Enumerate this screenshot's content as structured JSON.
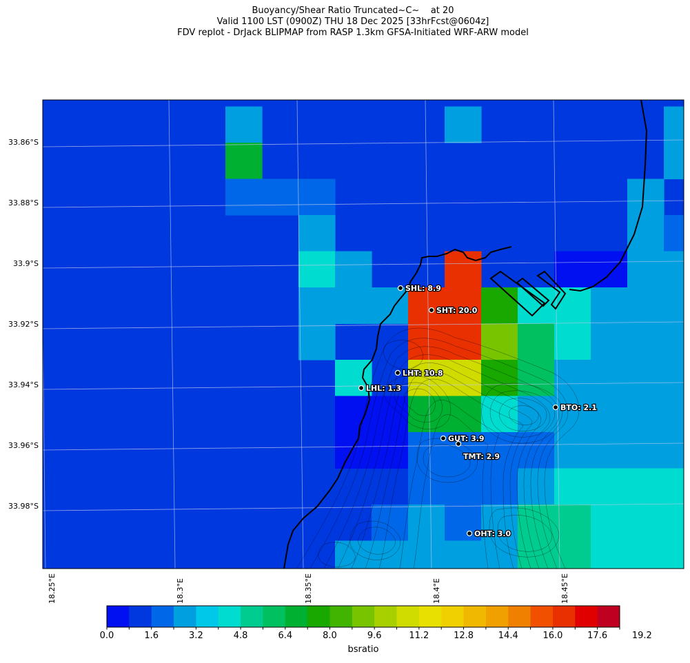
{
  "title": {
    "line1": "Buoyancy/Shear Ratio Truncated~C~    at 20",
    "line2": "Valid 1100 LST (0900Z) THU 18 Dec 2025 [33hrFcst@0604z]",
    "line3": "FDV replot - DrJack BLIPMAP from RASP 1.3km GFSA-Initiated WRF-ARW model"
  },
  "map": {
    "lat_ticks": [
      "33.86°S",
      "33.88°S",
      "33.9°S",
      "33.92°S",
      "33.94°S",
      "33.96°S",
      "33.98°S"
    ],
    "lon_ticks": [
      "18.25°E",
      "18.3°E",
      "18.35°E",
      "18.4°E",
      "18.45°E"
    ],
    "stations": [
      {
        "label": "SHL: 8.9",
        "value": 8.9
      },
      {
        "label": "SHT: 20.0",
        "value": 20.0
      },
      {
        "label": "LHT: 10.8",
        "value": 10.8
      },
      {
        "label": "LHL: 1.3",
        "value": 1.3
      },
      {
        "label": "BTO: 2.1",
        "value": 2.1
      },
      {
        "label": "GUT: 3.9",
        "value": 3.9
      },
      {
        "label": "TMT: 2.9",
        "value": 2.9
      },
      {
        "label": "OHT: 3.0",
        "value": 3.0
      }
    ],
    "background_level": 1,
    "cell_levels": [
      [
        1,
        1,
        1,
        1,
        1,
        1,
        1,
        1,
        1,
        1,
        1,
        1,
        1,
        1,
        1,
        1,
        1,
        1
      ],
      [
        1,
        1,
        1,
        1,
        1,
        3,
        1,
        1,
        1,
        1,
        1,
        3,
        1,
        1,
        1,
        1,
        1,
        3
      ],
      [
        1,
        1,
        1,
        1,
        1,
        8,
        1,
        1,
        1,
        1,
        1,
        1,
        1,
        1,
        1,
        1,
        1,
        3
      ],
      [
        1,
        1,
        1,
        1,
        1,
        2,
        2,
        2,
        1,
        1,
        1,
        1,
        1,
        1,
        1,
        1,
        3,
        1
      ],
      [
        1,
        1,
        1,
        1,
        1,
        1,
        1,
        3,
        1,
        1,
        1,
        1,
        1,
        1,
        1,
        1,
        3,
        2
      ],
      [
        1,
        1,
        1,
        1,
        1,
        1,
        1,
        5,
        3,
        1,
        1,
        20,
        1,
        1,
        0,
        0,
        3,
        3
      ],
      [
        1,
        1,
        1,
        1,
        1,
        1,
        1,
        3,
        3,
        3,
        20,
        20,
        9,
        5,
        5,
        3,
        3,
        3
      ],
      [
        1,
        1,
        1,
        1,
        1,
        1,
        1,
        3,
        1,
        1,
        20,
        20,
        11,
        7,
        5,
        3,
        3,
        3
      ],
      [
        1,
        1,
        1,
        1,
        1,
        1,
        1,
        1,
        5,
        1,
        13,
        13,
        9,
        7,
        3,
        3,
        3,
        3
      ],
      [
        1,
        1,
        1,
        1,
        1,
        1,
        1,
        1,
        0,
        0,
        8,
        8,
        5,
        3,
        3,
        3,
        3,
        3
      ],
      [
        1,
        1,
        1,
        1,
        1,
        1,
        1,
        1,
        0,
        0,
        2,
        2,
        2,
        2,
        3,
        3,
        3,
        3
      ],
      [
        1,
        1,
        1,
        1,
        1,
        1,
        1,
        1,
        1,
        1,
        2,
        2,
        2,
        3,
        5,
        5,
        5,
        5
      ],
      [
        1,
        1,
        1,
        1,
        1,
        1,
        1,
        1,
        1,
        2,
        3,
        2,
        3,
        6,
        6,
        5,
        5,
        5
      ],
      [
        1,
        1,
        1,
        1,
        1,
        1,
        1,
        1,
        3,
        3,
        3,
        3,
        3,
        6,
        6,
        5,
        5,
        5
      ]
    ]
  },
  "colorbar": {
    "label": "bsratio",
    "tick_labels": [
      "0.0",
      "1.6",
      "3.2",
      "4.8",
      "6.4",
      "8.0",
      "9.6",
      "11.2",
      "12.8",
      "14.4",
      "16.0",
      "17.6",
      "19.2"
    ],
    "colors": [
      "#0010f0",
      "#0038e0",
      "#0068e8",
      "#00a0e0",
      "#00c8e8",
      "#00dcd0",
      "#00cc90",
      "#00c060",
      "#00b030",
      "#18a800",
      "#40b400",
      "#78c400",
      "#a8d000",
      "#d0dc00",
      "#e8e000",
      "#f0d000",
      "#f0b800",
      "#f0a000",
      "#f08000",
      "#f05000",
      "#e83000",
      "#e00000",
      "#c00020"
    ]
  }
}
